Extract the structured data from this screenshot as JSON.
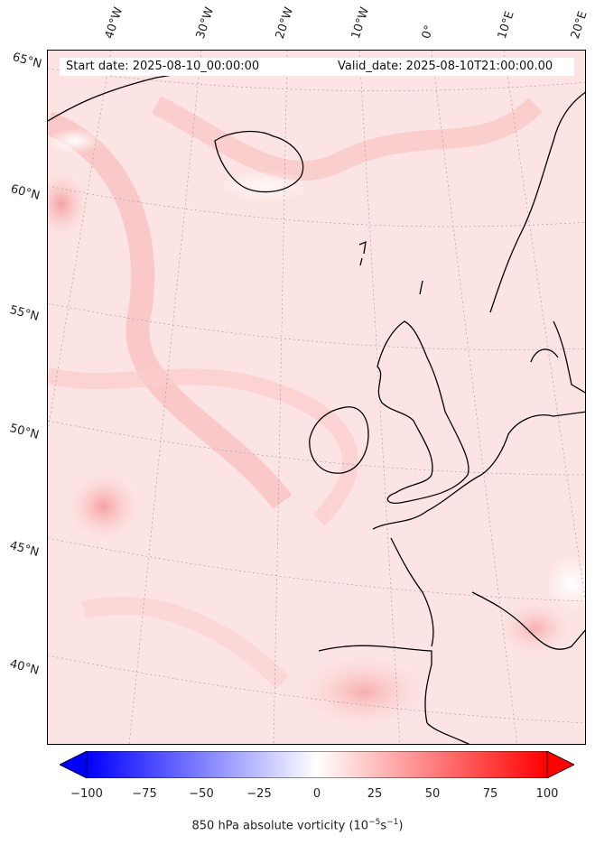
{
  "header": {
    "start_date": "Start date: 2025-08-10_00:00:00",
    "valid_date": "Valid_date: 2025-08-10T21:00:00.00"
  },
  "longitude_labels": [
    "40°W",
    "30°W",
    "20°W",
    "10°W",
    "0°",
    "10°E",
    "20°E"
  ],
  "latitude_labels": [
    "65°N",
    "60°N",
    "55°N",
    "50°N",
    "45°N",
    "40°N"
  ],
  "colorbar": {
    "label": "850 hPa absolute vorticity (10",
    "label_exp1": "−5",
    "label_mid": "s",
    "label_exp2": "−1",
    "label_end": ")",
    "ticks": [
      "−100",
      "−75",
      "−50",
      "−25",
      "0",
      "25",
      "50",
      "75",
      "100"
    ],
    "range": [
      -100,
      100
    ],
    "colors": {
      "min": "#0000ff",
      "mid": "#ffffff",
      "max": "#ff0000"
    }
  },
  "map": {
    "coastline_color": "#000000",
    "field_color": "#fde4e4"
  }
}
